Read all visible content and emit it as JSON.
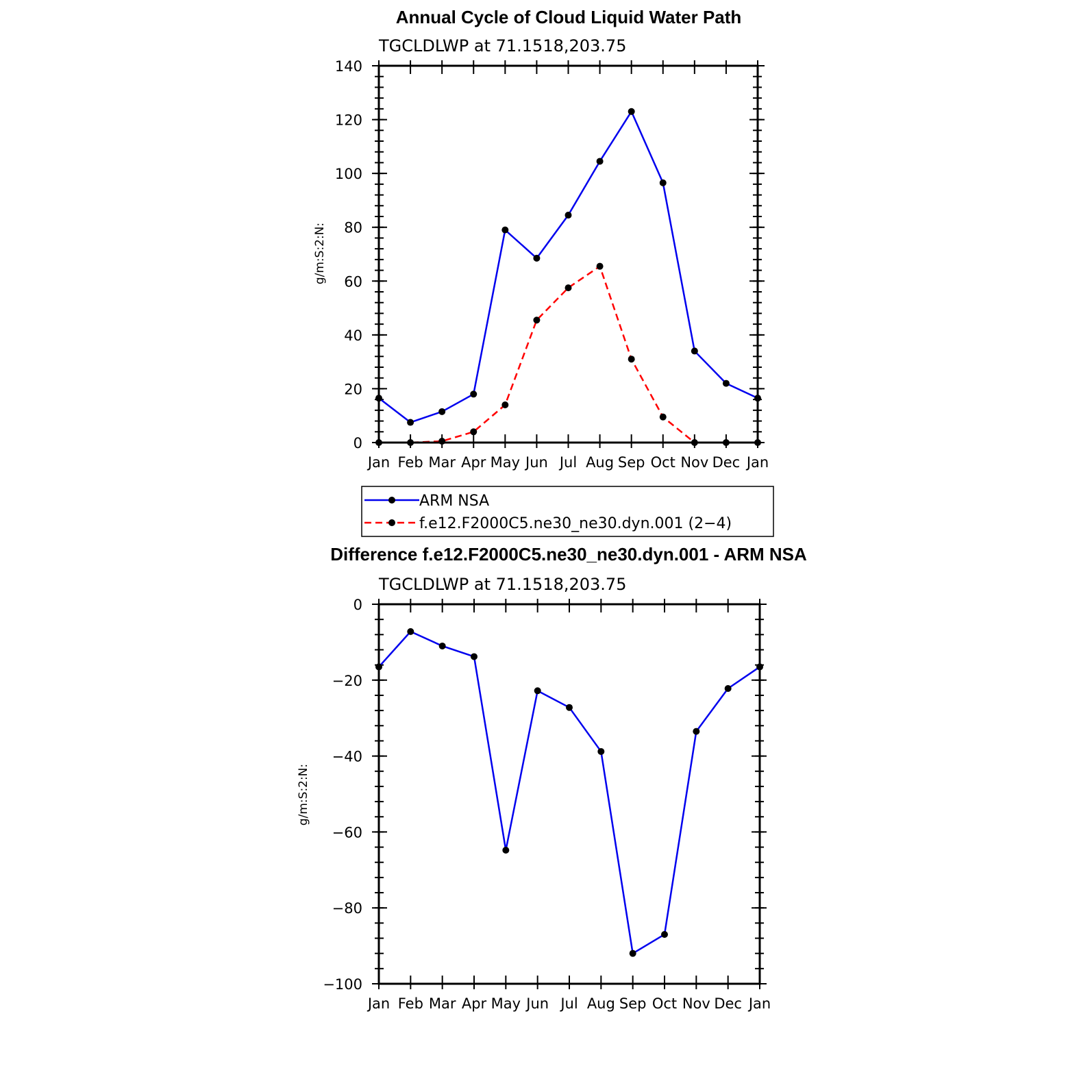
{
  "chart_data": [
    {
      "type": "line",
      "title": "Annual Cycle of Cloud Liquid Water Path",
      "subtitle": "TGCLDLWP  at  71.1518,203.75",
      "xlabel": "",
      "ylabel": "g/m:S:2:N:",
      "categories": [
        "Jan",
        "Feb",
        "Mar",
        "Apr",
        "May",
        "Jun",
        "Jul",
        "Aug",
        "Sep",
        "Oct",
        "Nov",
        "Dec",
        "Jan"
      ],
      "ylim": [
        0,
        140
      ],
      "yticks": [
        0,
        20,
        40,
        60,
        80,
        100,
        120,
        140
      ],
      "yticklabels": [
        "0",
        "20",
        "40",
        "60",
        "80",
        "100",
        "120",
        "140"
      ],
      "series": [
        {
          "name": "ARM NSA",
          "color": "#0000ee",
          "dash": "solid",
          "values": [
            16.5,
            7.5,
            11.5,
            18,
            79,
            68.5,
            84.5,
            104.5,
            123,
            96.5,
            34,
            22,
            16.5
          ]
        },
        {
          "name": "f.e12.F2000C5.ne30_ne30.dyn.001 (2−4)",
          "color": "#ff0000",
          "dash": "dashed",
          "values": [
            0,
            0,
            0.5,
            4,
            14,
            45.5,
            57.5,
            65.5,
            31,
            9.5,
            0,
            0,
            0
          ]
        }
      ],
      "legend": "below"
    },
    {
      "type": "line",
      "title": "Difference f.e12.F2000C5.ne30_ne30.dyn.001 - ARM NSA",
      "subtitle": "TGCLDLWP  at  71.1518,203.75",
      "xlabel": "",
      "ylabel": "g/m:S:2:N:",
      "categories": [
        "Jan",
        "Feb",
        "Mar",
        "Apr",
        "May",
        "Jun",
        "Jul",
        "Aug",
        "Sep",
        "Oct",
        "Nov",
        "Dec",
        "Jan"
      ],
      "ylim": [
        -100,
        0
      ],
      "yticks": [
        0,
        -20,
        -40,
        -60,
        -80,
        -100
      ],
      "yticklabels": [
        "0",
        "−20",
        "−40",
        "−60",
        "−80",
        "−100"
      ],
      "series": [
        {
          "name": "Difference",
          "color": "#0000ee",
          "dash": "solid",
          "values": [
            -16.5,
            -7.2,
            -11,
            -13.8,
            -64.8,
            -22.8,
            -27.2,
            -38.8,
            -92,
            -87,
            -33.5,
            -22.2,
            -16.5
          ]
        }
      ]
    }
  ]
}
